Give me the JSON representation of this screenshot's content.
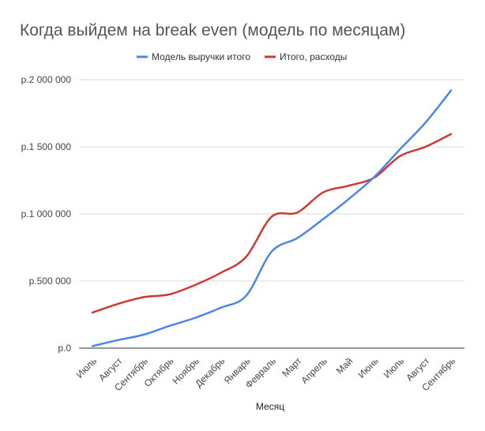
{
  "chart_data": {
    "type": "line",
    "title": "Когда выйдем на break even (модель по месяцам)",
    "xlabel": "Месяц",
    "ylabel": "",
    "categories": [
      "Июль",
      "Август",
      "Сентябрь",
      "Октябрь",
      "Ноябрь",
      "Декабрь",
      "Январь",
      "Февраль",
      "Март",
      "Апрель",
      "Май",
      "Июнь",
      "Июль",
      "Август",
      "Сентябрь"
    ],
    "ylim": [
      0,
      2000000
    ],
    "yticks": [
      0,
      500000,
      1000000,
      1500000,
      2000000
    ],
    "ytick_labels": [
      "р.0",
      "р.500 000",
      "р.1 000 000",
      "р.1 500 000",
      "р.2 000 000"
    ],
    "grid": true,
    "legend_position": "top",
    "series": [
      {
        "name": "Модель выручки итого",
        "color": "#4a86e8",
        "values": [
          15000,
          60000,
          100000,
          165000,
          225000,
          300000,
          390000,
          720000,
          820000,
          960000,
          1110000,
          1275000,
          1480000,
          1680000,
          1920000
        ]
      },
      {
        "name": "Итого, расходы",
        "color": "#cc3b33",
        "values": [
          265000,
          330000,
          380000,
          400000,
          470000,
          560000,
          680000,
          980000,
          1010000,
          1160000,
          1210000,
          1270000,
          1430000,
          1500000,
          1595000
        ]
      }
    ]
  }
}
